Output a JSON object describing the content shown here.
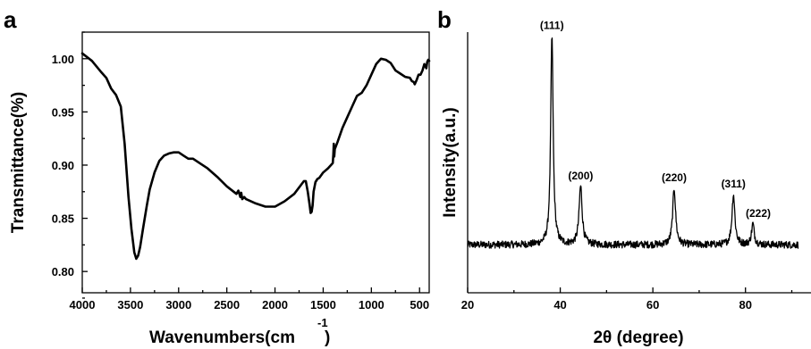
{
  "chart_data": [
    {
      "panel": "a",
      "type": "line",
      "xlabel": "Wavenumbers(cm",
      "xlabel_superscript": "-1",
      "xlabel_suffix": ")",
      "ylabel": "Transmittance(%)",
      "xlim": [
        4000,
        400
      ],
      "ylim": [
        0.78,
        1.025
      ],
      "xticks": [
        4000,
        3500,
        3000,
        2500,
        2000,
        1500,
        1000,
        500
      ],
      "xtick_labels": [
        "4000",
        "3500",
        "3000",
        "2500",
        "2000",
        "1500",
        "1000",
        "500"
      ],
      "yticks": [
        0.8,
        0.85,
        0.9,
        0.95,
        1.0
      ],
      "ytick_labels": [
        "0.80",
        "0.85",
        "0.90",
        "0.95",
        "1.00"
      ],
      "grid": false,
      "series": [
        {
          "x": [
            4000,
            3900,
            3800,
            3750,
            3700,
            3650,
            3600,
            3560,
            3520,
            3490,
            3460,
            3440,
            3420,
            3400,
            3370,
            3330,
            3300,
            3250,
            3200,
            3150,
            3100,
            3050,
            3000,
            2950,
            2900,
            2850,
            2800,
            2700,
            2600,
            2500,
            2400,
            2380,
            2360,
            2350,
            2340,
            2320,
            2300,
            2200,
            2100,
            2000,
            1900,
            1800,
            1700,
            1680,
            1660,
            1640,
            1630,
            1620,
            1610,
            1600,
            1580,
            1560,
            1540,
            1500,
            1450,
            1420,
            1400,
            1395,
            1390,
            1385,
            1380,
            1350,
            1300,
            1250,
            1200,
            1150,
            1100,
            1050,
            1000,
            950,
            900,
            850,
            800,
            750,
            700,
            650,
            600,
            580,
            560,
            550,
            530,
            510,
            490,
            470,
            450,
            430,
            420,
            410,
            400
          ],
          "y": [
            1.005,
            0.998,
            0.987,
            0.982,
            0.972,
            0.966,
            0.955,
            0.92,
            0.87,
            0.84,
            0.818,
            0.812,
            0.815,
            0.823,
            0.84,
            0.862,
            0.877,
            0.893,
            0.904,
            0.909,
            0.911,
            0.912,
            0.912,
            0.909,
            0.906,
            0.906,
            0.903,
            0.897,
            0.889,
            0.88,
            0.873,
            0.876,
            0.87,
            0.874,
            0.868,
            0.87,
            0.868,
            0.864,
            0.861,
            0.861,
            0.866,
            0.873,
            0.885,
            0.885,
            0.875,
            0.862,
            0.855,
            0.856,
            0.862,
            0.875,
            0.884,
            0.887,
            0.888,
            0.893,
            0.897,
            0.9,
            0.902,
            0.91,
            0.92,
            0.908,
            0.915,
            0.922,
            0.935,
            0.945,
            0.955,
            0.965,
            0.968,
            0.975,
            0.985,
            0.995,
            1.0,
            0.999,
            0.996,
            0.989,
            0.986,
            0.983,
            0.982,
            0.979,
            0.978,
            0.976,
            0.98,
            0.985,
            0.985,
            0.989,
            0.995,
            0.991,
            0.997,
            0.999,
            0.998
          ]
        }
      ]
    },
    {
      "panel": "b",
      "type": "line",
      "xlabel": "2θ (degree)",
      "ylabel": "Intensity(a.u.)",
      "xlim": [
        20,
        90
      ],
      "ylim": [
        -0.15,
        1.1
      ],
      "xticks": [
        20,
        40,
        60,
        80
      ],
      "xtick_labels": [
        "20",
        "40",
        "60",
        "80"
      ],
      "grid": false,
      "baseline": 0.08,
      "peaks": [
        {
          "pos": 38.2,
          "height": 1.0,
          "width": 0.32,
          "label": "(111)"
        },
        {
          "pos": 44.4,
          "height": 0.28,
          "width": 0.4,
          "label": "(200)"
        },
        {
          "pos": 64.6,
          "height": 0.27,
          "width": 0.38,
          "label": "(220)"
        },
        {
          "pos": 77.4,
          "height": 0.24,
          "width": 0.38,
          "label": "(311)"
        },
        {
          "pos": 81.6,
          "height": 0.1,
          "width": 0.35,
          "label": "(222)"
        }
      ]
    }
  ]
}
